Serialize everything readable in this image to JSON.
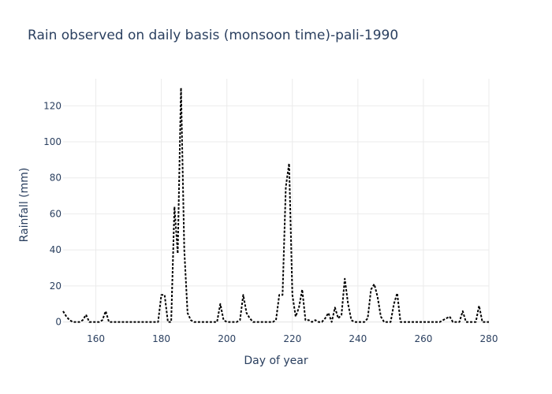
{
  "chart_data": {
    "type": "line",
    "title": "Rain observed on daily basis (monsoon time)-pali-1990",
    "xlabel": "Day of year",
    "ylabel": "Rainfall (mm)",
    "xlim": [
      150,
      280
    ],
    "ylim": [
      -5,
      135
    ],
    "xticks": [
      160,
      180,
      200,
      220,
      240,
      260,
      280
    ],
    "yticks": [
      0,
      20,
      40,
      60,
      80,
      100,
      120
    ],
    "grid": true,
    "legend": "none",
    "line_color": "#000000",
    "line_style": "dotted",
    "series": [
      {
        "x": [
          150,
          151,
          152,
          153,
          154,
          155,
          156,
          157,
          158,
          159,
          160,
          161,
          162,
          163,
          164,
          165,
          166,
          167,
          168,
          169,
          170,
          171,
          172,
          173,
          174,
          175,
          176,
          177,
          178,
          179,
          180,
          181,
          182,
          183,
          184,
          185,
          186,
          187,
          188,
          189,
          190,
          191,
          192,
          193,
          194,
          195,
          196,
          197,
          198,
          199,
          200,
          201,
          202,
          203,
          204,
          205,
          206,
          207,
          208,
          209,
          210,
          211,
          212,
          213,
          214,
          215,
          216,
          217,
          218,
          219,
          220,
          221,
          222,
          223,
          224,
          225,
          226,
          227,
          228,
          229,
          230,
          231,
          232,
          233,
          234,
          235,
          236,
          237,
          238,
          239,
          240,
          241,
          242,
          243,
          244,
          245,
          246,
          247,
          248,
          249,
          250,
          251,
          252,
          253,
          254,
          255,
          256,
          257,
          258,
          259,
          260,
          261,
          262,
          263,
          264,
          265,
          266,
          267,
          268,
          269,
          270,
          271,
          272,
          273,
          274,
          275,
          276,
          277,
          278,
          279,
          280
        ],
        "values": [
          6,
          3,
          1,
          0,
          0,
          0,
          1,
          4,
          0,
          0,
          0,
          0,
          1,
          6,
          0,
          0,
          0,
          0,
          0,
          0,
          0,
          0,
          0,
          0,
          0,
          0,
          0,
          0,
          0,
          0,
          15,
          15,
          0,
          0,
          64,
          38,
          130,
          40,
          5,
          1,
          0,
          0,
          0,
          0,
          0,
          0,
          0,
          0,
          10,
          1,
          0,
          0,
          0,
          0,
          1,
          15,
          5,
          2,
          0,
          0,
          0,
          0,
          0,
          0,
          0,
          1,
          15,
          15,
          75,
          88,
          15,
          3,
          8,
          18,
          1,
          1,
          0,
          1,
          0,
          0,
          2,
          5,
          0,
          8,
          2,
          4,
          24,
          10,
          1,
          0,
          0,
          0,
          0,
          2,
          18,
          21,
          14,
          3,
          0,
          0,
          0,
          10,
          16,
          0,
          0,
          0,
          0,
          0,
          0,
          0,
          0,
          0,
          0,
          0,
          0,
          0,
          1,
          2,
          3,
          0,
          0,
          0,
          6,
          0,
          0,
          0,
          0,
          9,
          0,
          0,
          0
        ]
      }
    ]
  }
}
